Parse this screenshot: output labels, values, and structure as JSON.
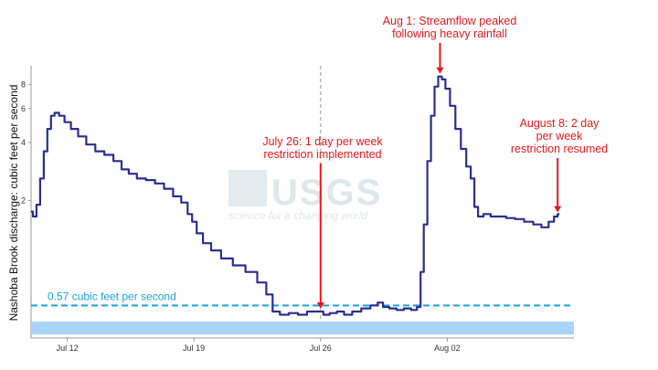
{
  "chart_data": {
    "type": "line",
    "title": "",
    "xlabel": "",
    "ylabel": "Nashoba Brook discharge: cubic feet per second",
    "y_scale": "log",
    "ylim": [
      0.47,
      10
    ],
    "y_ticks": [
      {
        "value": 2,
        "label": "2"
      },
      {
        "value": 4,
        "label": "4"
      },
      {
        "value": 6,
        "label": "6"
      },
      {
        "value": 8,
        "label": "8"
      }
    ],
    "x_ticks": [
      {
        "label": "Jul 12",
        "day": 12
      },
      {
        "label": "Jul 19",
        "day": 19
      },
      {
        "label": "Jul 26",
        "day": 26
      },
      {
        "label": "Aug 02",
        "day": 33
      }
    ],
    "x_range": {
      "start": "Jul 10",
      "end": "Aug 9"
    },
    "grid": false,
    "reference_line": {
      "value": 0.57,
      "label": "0.57 cubic feet per second",
      "color": "#1aa3d9"
    },
    "series": [
      {
        "color": "#2b2f8c",
        "points": [
          [
            10.0,
            1.75
          ],
          [
            10.2,
            1.65
          ],
          [
            10.4,
            1.9
          ],
          [
            10.6,
            2.6
          ],
          [
            10.8,
            3.6
          ],
          [
            11.0,
            4.7
          ],
          [
            11.2,
            5.5
          ],
          [
            11.4,
            5.7
          ],
          [
            11.7,
            5.5
          ],
          [
            12.0,
            5.1
          ],
          [
            12.4,
            4.7
          ],
          [
            12.8,
            4.3
          ],
          [
            13.3,
            3.9
          ],
          [
            13.8,
            3.6
          ],
          [
            14.3,
            3.45
          ],
          [
            14.8,
            3.2
          ],
          [
            15.2,
            2.9
          ],
          [
            15.6,
            2.75
          ],
          [
            16.1,
            2.6
          ],
          [
            16.6,
            2.55
          ],
          [
            17.1,
            2.45
          ],
          [
            17.6,
            2.3
          ],
          [
            18.1,
            2.1
          ],
          [
            18.5,
            1.95
          ],
          [
            18.8,
            1.7
          ],
          [
            19.0,
            1.55
          ],
          [
            19.3,
            1.35
          ],
          [
            19.7,
            1.2
          ],
          [
            20.2,
            1.1
          ],
          [
            20.8,
            1.0
          ],
          [
            21.5,
            0.92
          ],
          [
            22.2,
            0.85
          ],
          [
            22.8,
            0.75
          ],
          [
            23.2,
            0.65
          ],
          [
            23.5,
            0.53
          ],
          [
            24.0,
            0.51
          ],
          [
            24.5,
            0.52
          ],
          [
            25.0,
            0.51
          ],
          [
            25.5,
            0.53
          ],
          [
            26.0,
            0.53
          ],
          [
            26.3,
            0.51
          ],
          [
            26.7,
            0.52
          ],
          [
            27.1,
            0.53
          ],
          [
            27.5,
            0.51
          ],
          [
            28.0,
            0.53
          ],
          [
            28.5,
            0.55
          ],
          [
            29.0,
            0.57
          ],
          [
            29.3,
            0.59
          ],
          [
            29.6,
            0.56
          ],
          [
            30.0,
            0.55
          ],
          [
            30.4,
            0.54
          ],
          [
            30.8,
            0.55
          ],
          [
            31.2,
            0.54
          ],
          [
            31.45,
            0.56
          ],
          [
            31.6,
            0.85
          ],
          [
            31.8,
            1.5
          ],
          [
            32.0,
            3.2
          ],
          [
            32.2,
            5.5
          ],
          [
            32.4,
            7.8
          ],
          [
            32.6,
            8.8
          ],
          [
            32.8,
            8.5
          ],
          [
            33.0,
            7.6
          ],
          [
            33.3,
            6.2
          ],
          [
            33.6,
            4.7
          ],
          [
            33.9,
            3.7
          ],
          [
            34.2,
            3.0
          ],
          [
            34.4,
            2.6
          ],
          [
            34.6,
            1.85
          ],
          [
            34.8,
            1.65
          ],
          [
            35.2,
            1.7
          ],
          [
            35.6,
            1.65
          ],
          [
            36.0,
            1.65
          ],
          [
            36.5,
            1.62
          ],
          [
            37.0,
            1.6
          ],
          [
            37.5,
            1.55
          ],
          [
            38.0,
            1.5
          ],
          [
            38.4,
            1.45
          ],
          [
            38.8,
            1.55
          ],
          [
            39.0,
            1.65
          ],
          [
            39.2,
            1.7
          ]
        ]
      }
    ],
    "annotations": [
      {
        "name": "annotation-jul26",
        "lines": [
          "July 26:  1 day per week",
          "restriction implemented"
        ],
        "day": 26.0
      },
      {
        "name": "annotation-aug1",
        "lines": [
          "Aug 1: Streamflow peaked",
          "following heavy rainfall"
        ],
        "day": 32.6
      },
      {
        "name": "annotation-aug8",
        "lines": [
          "August 8:  2 day",
          "per week",
          "restriction resumed"
        ],
        "day": 39.1
      }
    ],
    "vertical_marker_day": 26.0,
    "watermark": {
      "big": "USGS",
      "small": "science for a changing world"
    }
  }
}
